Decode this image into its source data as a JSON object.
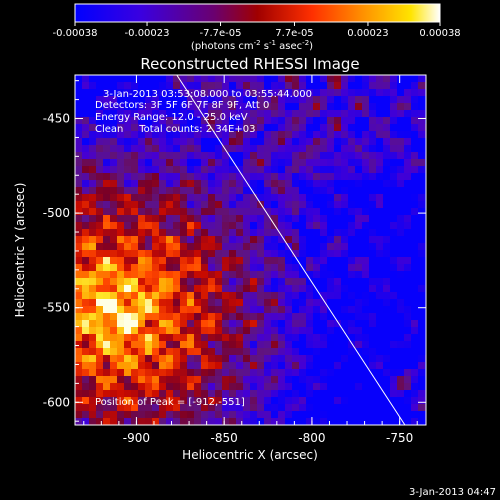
{
  "chart_data": {
    "type": "heatmap",
    "title": "Reconstructed RHESSI Image",
    "xlabel": "Heliocentric X (arcsec)",
    "ylabel": "Heliocentric Y (arcsec)",
    "xlim": [
      -935,
      -735
    ],
    "ylim": [
      -612,
      -427
    ],
    "x_ticks": [
      -900,
      -850,
      -800,
      -750
    ],
    "x_tick_labels": [
      "-900",
      "-850",
      "-800",
      "-750"
    ],
    "y_ticks": [
      -450,
      -500,
      -550,
      -600
    ],
    "y_tick_labels": [
      "-450",
      "-500",
      "-550",
      "-600"
    ],
    "colorbar": {
      "ticks": [
        -0.00038,
        -0.00023,
        -7.7e-05,
        7.7e-05,
        0.00023,
        0.00038
      ],
      "tick_labels": [
        "-0.00038",
        "-0.00023",
        "-7.7e-05",
        "7.7e-05",
        "0.00023",
        "0.00038"
      ],
      "label_main": "(photons cm",
      "label_exp1": "-2",
      "label_mid": " s",
      "label_exp2": "-1",
      "label_tail": " asec",
      "label_exp3": "-2",
      "label_close": ")",
      "colormap": [
        "#0000ff",
        "#4b00c8",
        "#8c0000",
        "#ff2000",
        "#ff9000",
        "#ffe000",
        "#ffffff"
      ]
    },
    "annotations": [
      "3-Jan-2013 03:53:08.000 to 03:55:44.000",
      "Detectors: 3F 5F 6F 7F 8F 9F, Att 0",
      "Energy Range: 12.0 - 25.0 keV",
      "Clean     Total counts: 2.34E+03"
    ],
    "peak_label": "Position of Peak = [-912,-551]",
    "peak": [
      -912,
      -551
    ],
    "limb_line": [
      [
        -877,
        -427
      ],
      [
        -747,
        -612
      ]
    ],
    "grid": false
  },
  "footer": {
    "timestamp": "3-Jan-2013 04:47"
  }
}
